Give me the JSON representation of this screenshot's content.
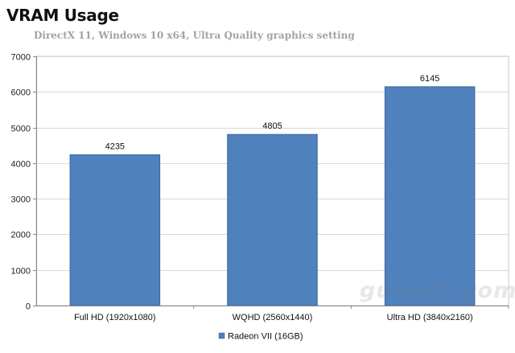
{
  "title": "VRAM Usage",
  "subtitle": "DirectX 11, Windows 10 x64, Ultra Quality graphics setting",
  "watermark": "guru3D.com",
  "colors": {
    "bar": "#4f81bd",
    "bar_stroke": "#3b67a0",
    "plot_bg": "#ffffff",
    "grid": "#d9d9d9"
  },
  "chart_data": {
    "type": "bar",
    "categories": [
      "Full HD (1920x1080)",
      "WQHD (2560x1440)",
      "Ultra HD (3840x2160)"
    ],
    "series": [
      {
        "name": "Radeon VII  (16GB)",
        "values": [
          4235,
          4805,
          6145
        ]
      }
    ],
    "ylim": [
      0,
      7000
    ],
    "yticks": [
      0,
      1000,
      2000,
      3000,
      4000,
      5000,
      6000,
      7000
    ],
    "grid": true,
    "legend": "bottom",
    "data_labels": true
  }
}
